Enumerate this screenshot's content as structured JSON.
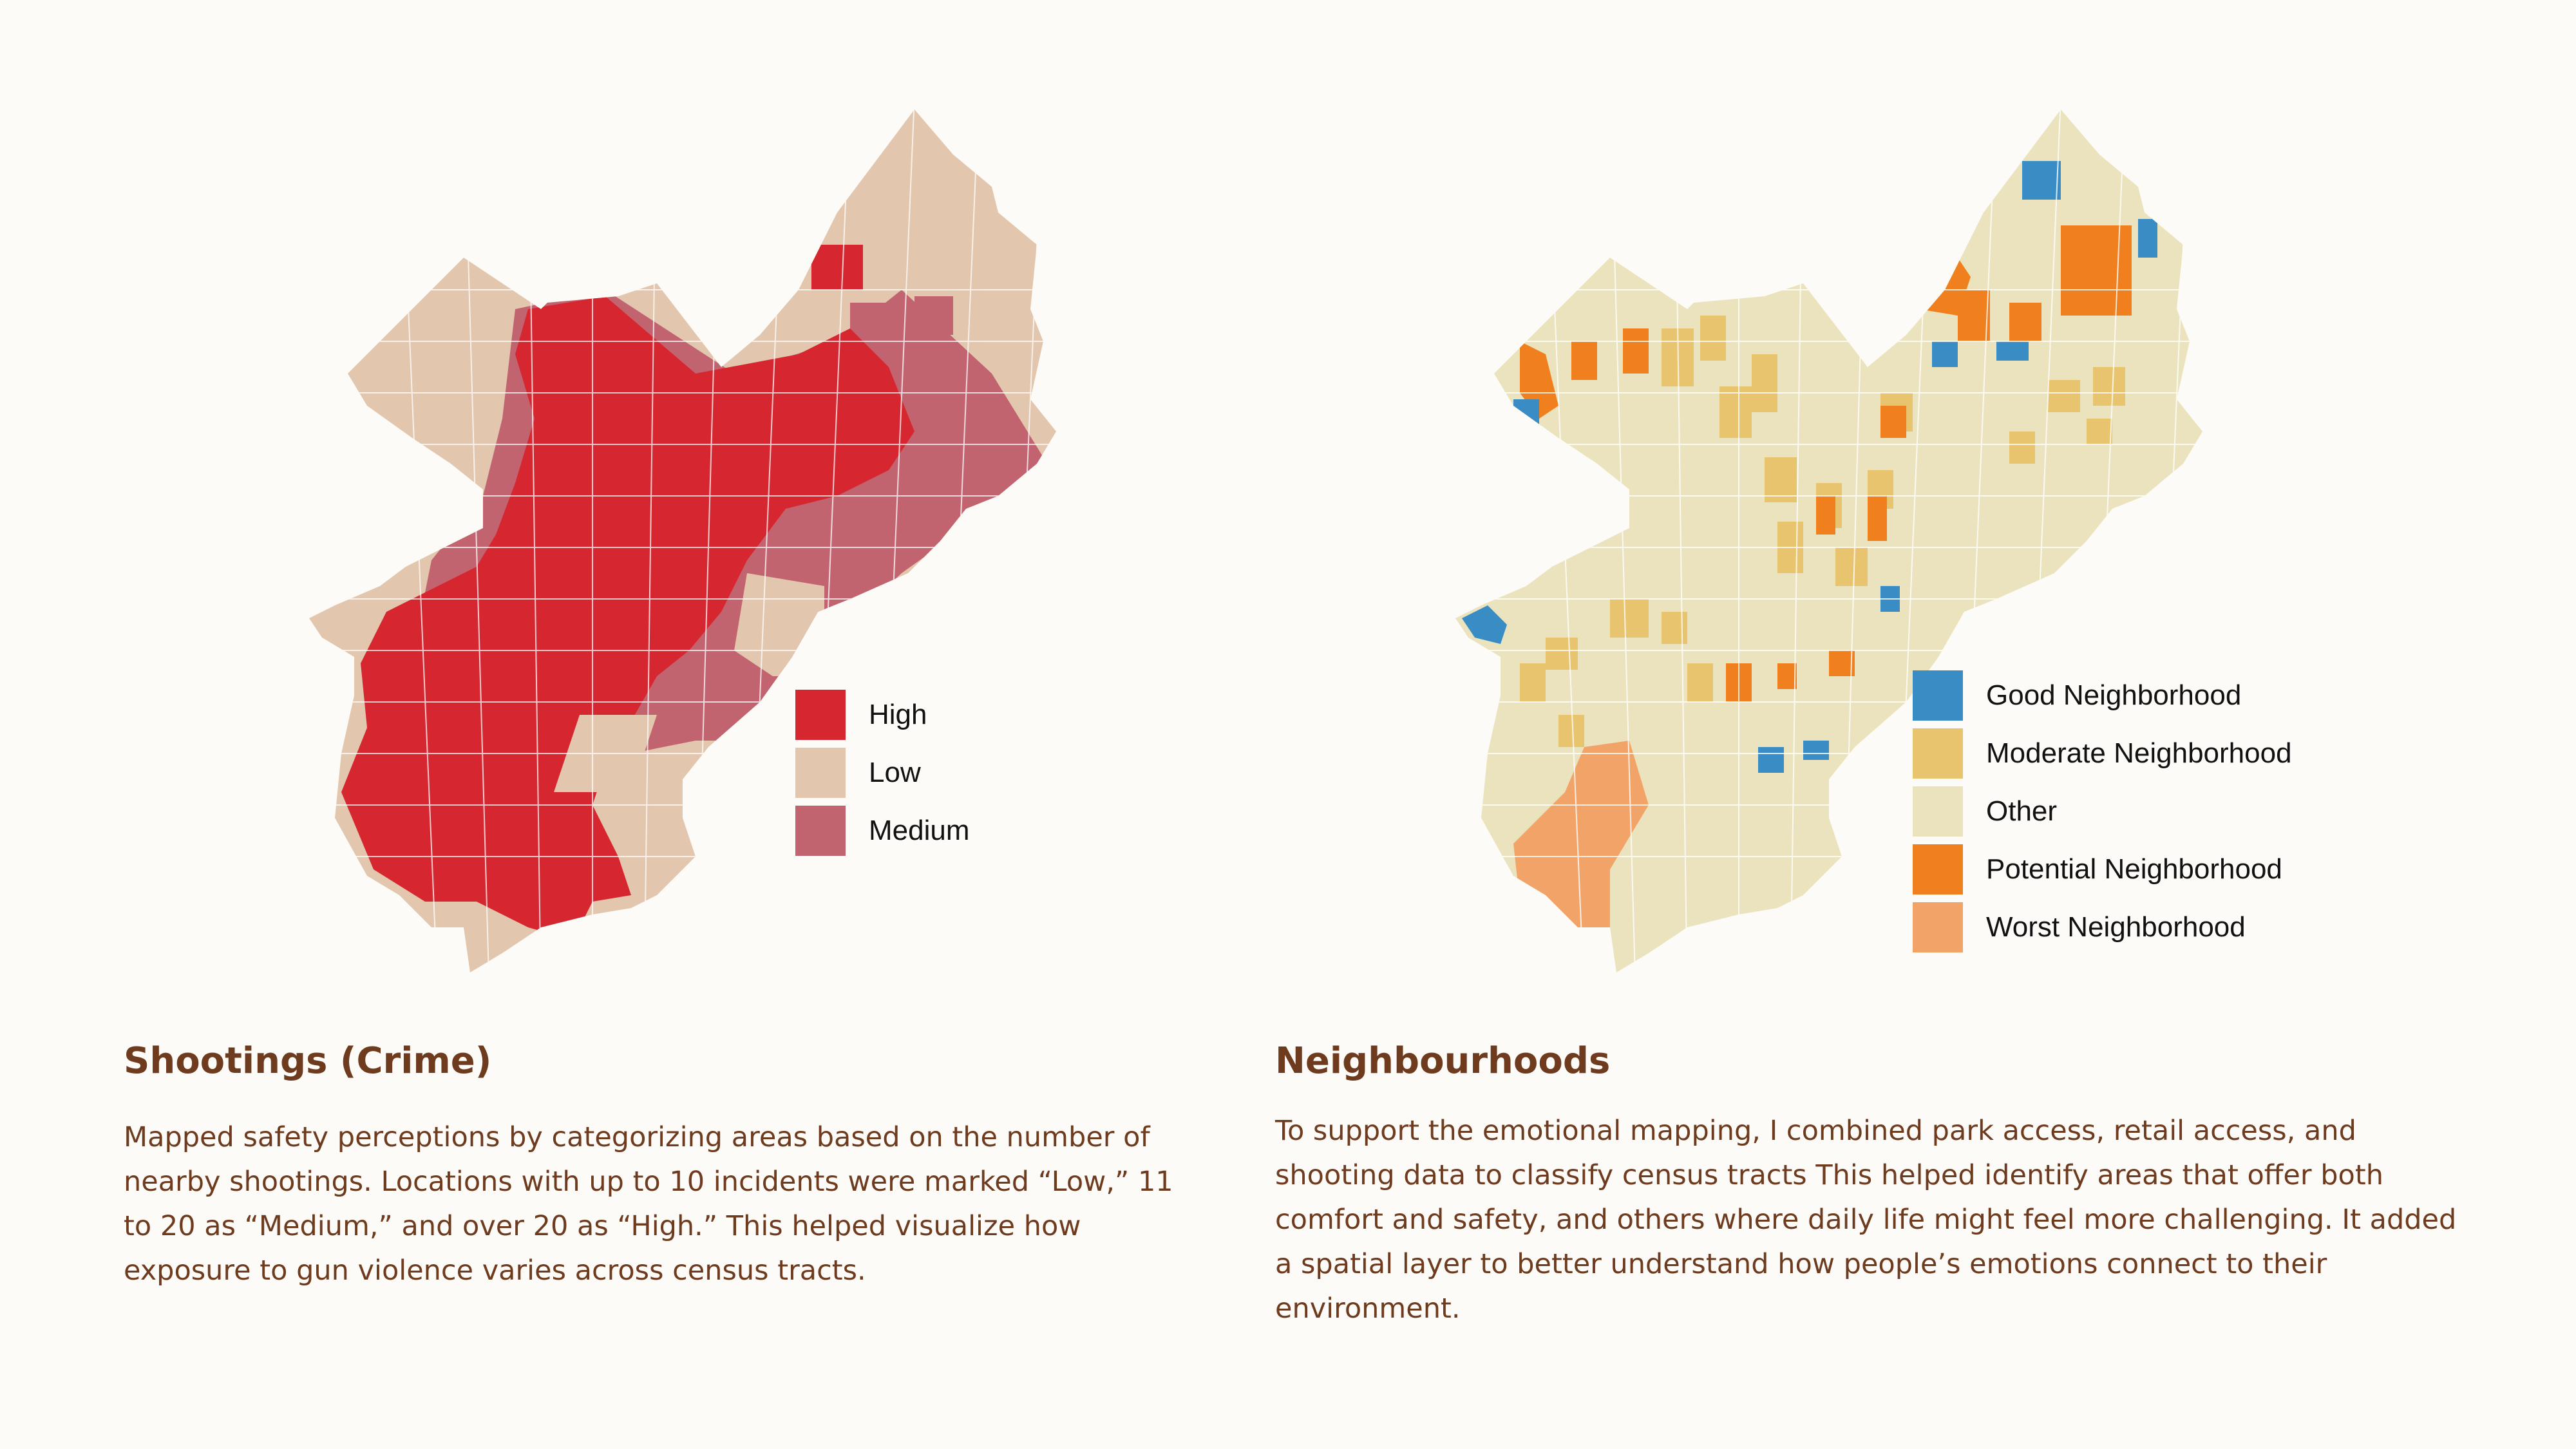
{
  "maps": {
    "crime": {
      "legend": [
        {
          "label": "High",
          "color": "#d62630"
        },
        {
          "label": "Low",
          "color": "#e2c6ae"
        },
        {
          "label": "Medium",
          "color": "#c26470"
        }
      ],
      "title": "Shootings (Crime)",
      "body_lines": [
        "Mapped safety perceptions by categorizing areas based on the number of",
        "nearby shootings. Locations with up to 10 incidents were marked “Low,” 11",
        "to 20 as “Medium,” and over 20 as “High.” This helped visualize how",
        "exposure to gun violence varies across census tracts."
      ]
    },
    "neighbourhoods": {
      "legend": [
        {
          "label": "Good Neighborhood",
          "color": "#3a8dc4"
        },
        {
          "label": "Moderate Neighborhood",
          "color": "#e9c46e"
        },
        {
          "label": "Other",
          "color": "#ebe3bd"
        },
        {
          "label": "Potential Neighborhood",
          "color": "#f07f1d"
        },
        {
          "label": "Worst Neighborhood",
          "color": "#f2a468"
        }
      ],
      "title": "Neighbourhoods",
      "body_lines": [
        "To support the emotional mapping, I combined park access, retail access, and",
        "shooting data to classify census tracts This helped identify areas that offer both",
        "comfort and safety, and others where daily life might feel more challenging. It added",
        "a spatial layer to better understand how people’s emotions connect to their",
        "environment."
      ]
    }
  }
}
